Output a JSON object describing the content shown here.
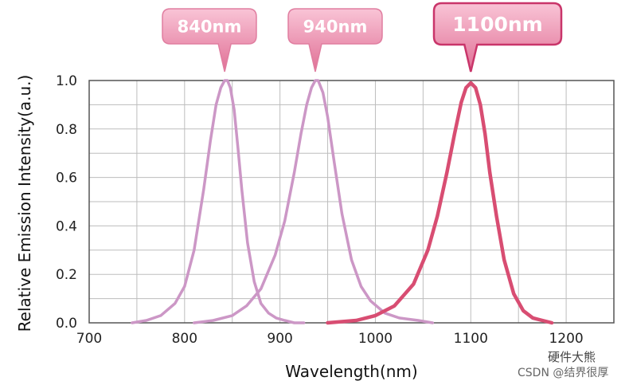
{
  "chart_data": {
    "type": "line",
    "title": "",
    "xlabel": "Wavelength(nm)",
    "ylabel": "Relative Emission Intensity(a.u.)",
    "xlim": [
      700,
      1250
    ],
    "ylim": [
      0,
      1.0
    ],
    "x_ticks": [
      700,
      800,
      900,
      1000,
      1100,
      1200
    ],
    "y_ticks": [
      "0.0",
      "0.2",
      "0.4",
      "0.6",
      "0.8",
      "1.0"
    ],
    "grid": true,
    "series": [
      {
        "name": "840nm",
        "label": "840nm",
        "color": "#cc97c6",
        "x": [
          745,
          760,
          775,
          790,
          800,
          810,
          820,
          827,
          833,
          838,
          842,
          845,
          848,
          852,
          856,
          860,
          866,
          873,
          880,
          888,
          896,
          905,
          915,
          925
        ],
        "y": [
          0.0,
          0.01,
          0.03,
          0.08,
          0.15,
          0.3,
          0.55,
          0.75,
          0.9,
          0.97,
          1.0,
          1.0,
          0.97,
          0.88,
          0.72,
          0.55,
          0.33,
          0.17,
          0.08,
          0.04,
          0.02,
          0.01,
          0.0,
          0.0
        ]
      },
      {
        "name": "940nm",
        "label": "940nm",
        "color": "#cc97c6",
        "x": [
          810,
          830,
          850,
          865,
          880,
          895,
          905,
          915,
          922,
          928,
          933,
          937,
          940,
          945,
          950,
          957,
          965,
          975,
          985,
          995,
          1010,
          1025,
          1045,
          1060
        ],
        "y": [
          0.0,
          0.01,
          0.03,
          0.07,
          0.14,
          0.28,
          0.42,
          0.62,
          0.78,
          0.9,
          0.97,
          1.0,
          1.0,
          0.95,
          0.85,
          0.66,
          0.45,
          0.26,
          0.15,
          0.09,
          0.04,
          0.02,
          0.01,
          0.0
        ]
      },
      {
        "name": "1100nm",
        "label": "1100nm",
        "color": "#d84d72",
        "x": [
          950,
          980,
          1000,
          1020,
          1040,
          1055,
          1065,
          1075,
          1083,
          1090,
          1095,
          1100,
          1105,
          1110,
          1115,
          1120,
          1127,
          1135,
          1145,
          1155,
          1165,
          1175,
          1185
        ],
        "y": [
          0.0,
          0.01,
          0.03,
          0.07,
          0.16,
          0.3,
          0.44,
          0.62,
          0.78,
          0.91,
          0.97,
          0.99,
          0.97,
          0.9,
          0.78,
          0.62,
          0.44,
          0.26,
          0.12,
          0.05,
          0.02,
          0.01,
          0.0
        ]
      }
    ]
  },
  "watermark": {
    "line1": "硬件大熊",
    "line2": "CSDN @结界很厚"
  }
}
